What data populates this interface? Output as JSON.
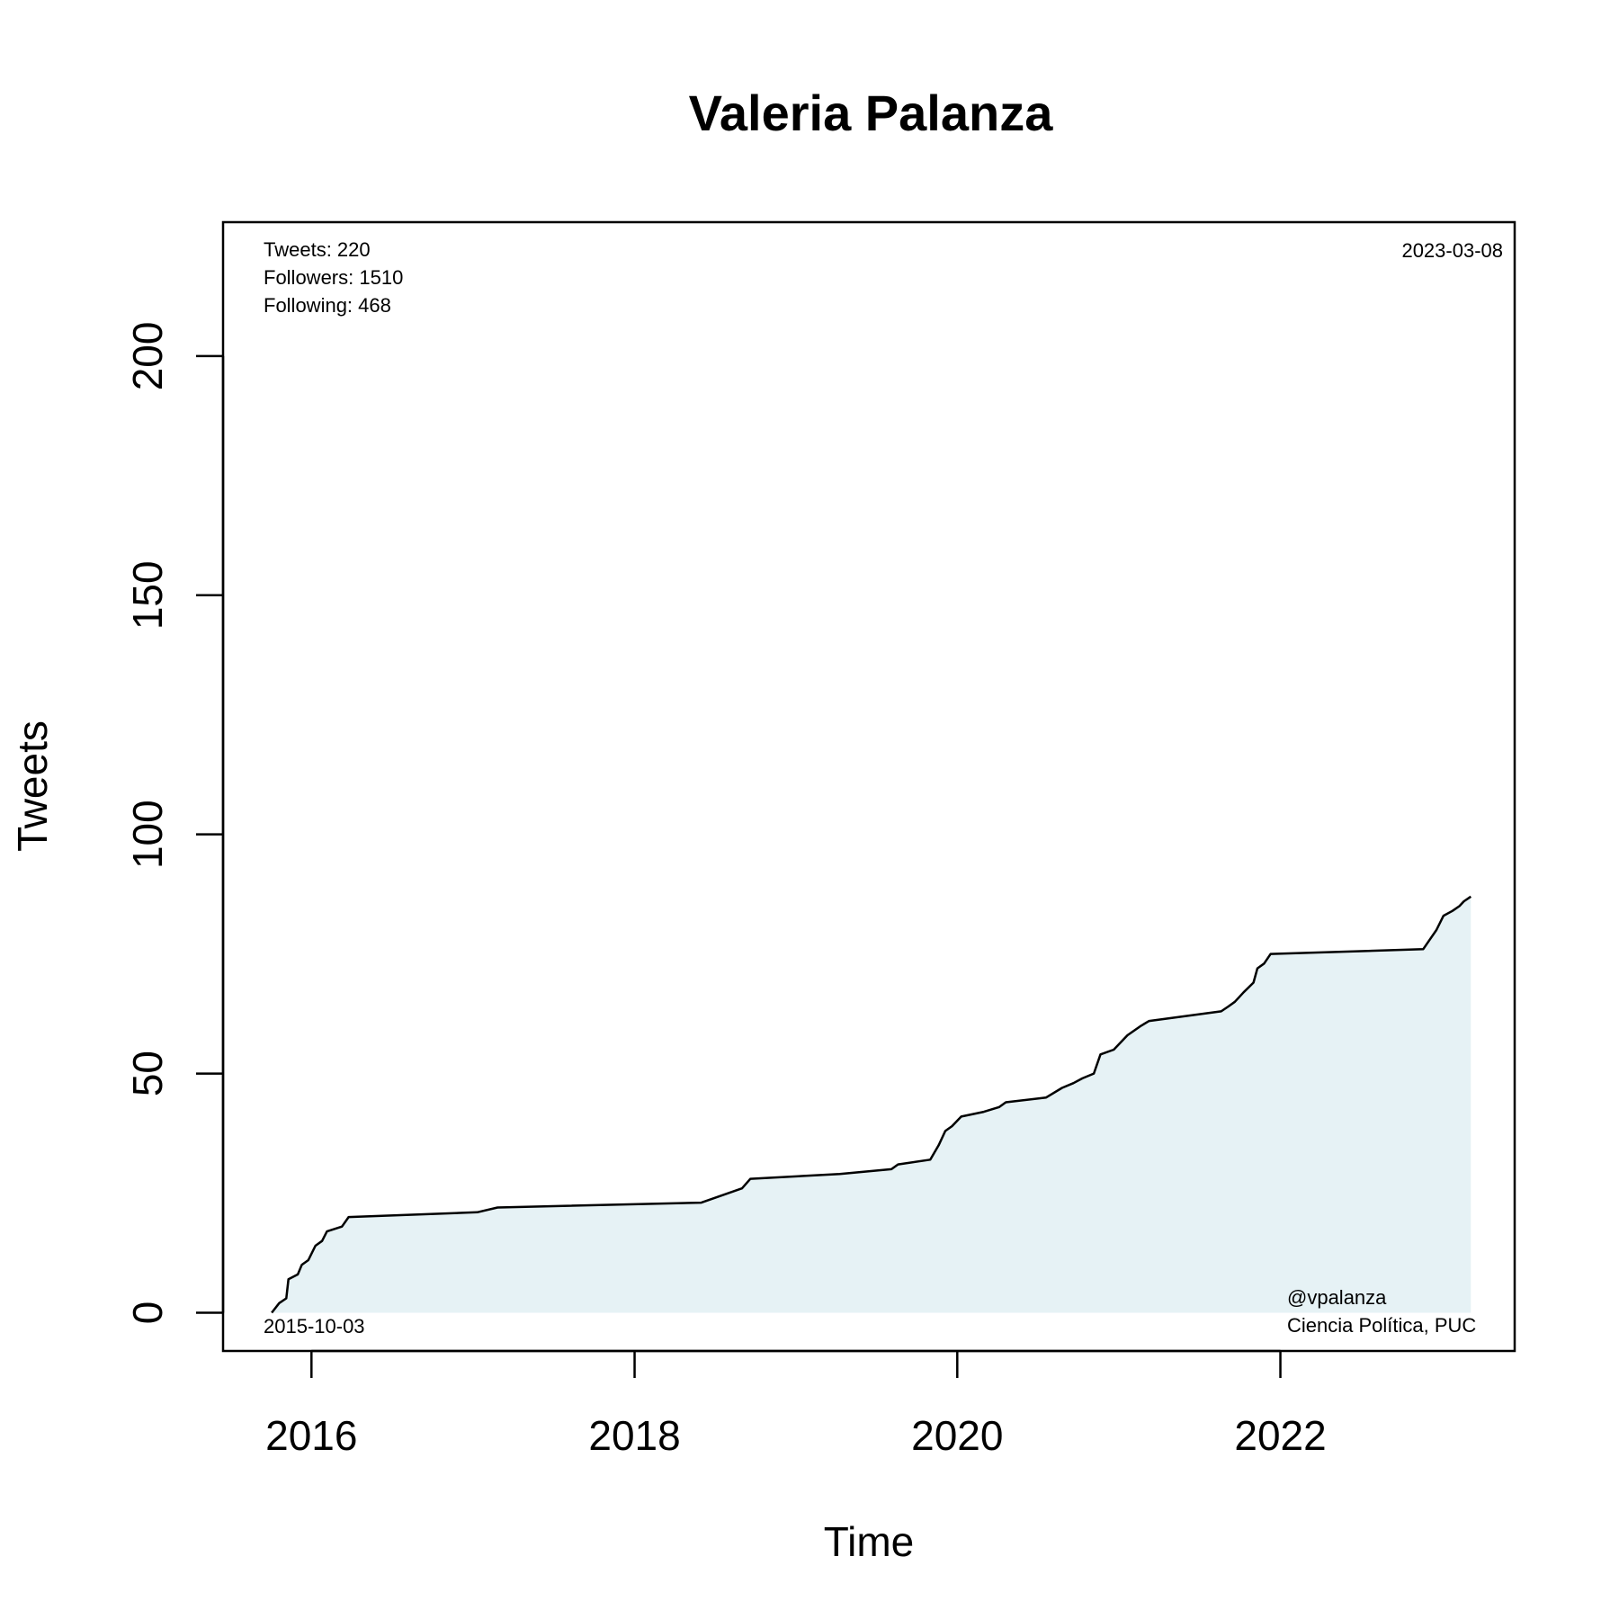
{
  "chart_data": {
    "type": "area",
    "title": "Valeria Palanza",
    "xlabel": "Time",
    "ylabel": "Tweets",
    "x_ticks": [
      "2016",
      "2018",
      "2020",
      "2022"
    ],
    "y_ticks": [
      "0",
      "50",
      "100",
      "150",
      "200"
    ],
    "ylim": [
      -8,
      228
    ],
    "xlim": [
      "2015-06-15",
      "2023-06-15"
    ],
    "stats": {
      "tweets": "Tweets: 220",
      "followers": "Followers: 1510",
      "following": "Following: 468"
    },
    "start_label": "2015-10-03",
    "end_label": "2023-03-08",
    "credit_handle": "@vpalanza",
    "credit_affiliation": "Ciencia Política, PUC",
    "line_color": "#000000",
    "fill_color": "#e6f2f5",
    "grid": false,
    "series": [
      {
        "points": [
          [
            "2015-10-03",
            0
          ],
          [
            "2015-10-20",
            2
          ],
          [
            "2015-11-05",
            3
          ],
          [
            "2015-11-10",
            7
          ],
          [
            "2015-12-01",
            8
          ],
          [
            "2015-12-10",
            10
          ],
          [
            "2015-12-25",
            11
          ],
          [
            "2016-01-10",
            14
          ],
          [
            "2016-01-25",
            15
          ],
          [
            "2016-02-05",
            17
          ],
          [
            "2016-03-10",
            18
          ],
          [
            "2016-03-25",
            20
          ],
          [
            "2017-01-10",
            21
          ],
          [
            "2017-02-25",
            22
          ],
          [
            "2018-06-01",
            23
          ],
          [
            "2018-09-01",
            26
          ],
          [
            "2018-09-20",
            28
          ],
          [
            "2019-04-10",
            29
          ],
          [
            "2019-08-05",
            30
          ],
          [
            "2019-08-20",
            31
          ],
          [
            "2019-11-01",
            32
          ],
          [
            "2019-11-20",
            35
          ],
          [
            "2019-12-05",
            38
          ],
          [
            "2019-12-20",
            39
          ],
          [
            "2020-01-10",
            41
          ],
          [
            "2020-03-01",
            42
          ],
          [
            "2020-04-05",
            43
          ],
          [
            "2020-04-20",
            44
          ],
          [
            "2020-07-20",
            45
          ],
          [
            "2020-08-25",
            47
          ],
          [
            "2020-09-20",
            48
          ],
          [
            "2020-10-10",
            49
          ],
          [
            "2020-11-05",
            50
          ],
          [
            "2020-11-20",
            54
          ],
          [
            "2020-12-20",
            55
          ],
          [
            "2021-01-20",
            58
          ],
          [
            "2021-02-20",
            60
          ],
          [
            "2021-03-10",
            61
          ],
          [
            "2021-08-20",
            63
          ],
          [
            "2021-09-05",
            64
          ],
          [
            "2021-09-20",
            65
          ],
          [
            "2021-10-10",
            67
          ],
          [
            "2021-11-01",
            69
          ],
          [
            "2021-11-10",
            72
          ],
          [
            "2021-11-25",
            73
          ],
          [
            "2021-12-10",
            75
          ],
          [
            "2022-11-20",
            76
          ],
          [
            "2022-12-05",
            78
          ],
          [
            "2022-12-20",
            80
          ],
          [
            "2023-01-05",
            83
          ],
          [
            "2023-01-25",
            84
          ],
          [
            "2023-02-10",
            85
          ],
          [
            "2023-02-20",
            86
          ],
          [
            "2023-03-08",
            87
          ]
        ]
      }
    ]
  }
}
